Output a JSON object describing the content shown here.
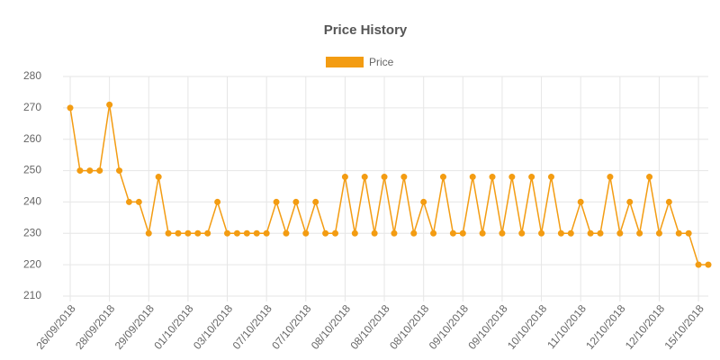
{
  "chart_data": {
    "type": "line",
    "title": "Price History",
    "categories": [
      "26/09/2018",
      null,
      null,
      null,
      "28/09/2018",
      null,
      null,
      null,
      "29/09/2018",
      null,
      null,
      null,
      "01/10/2018",
      null,
      null,
      null,
      "03/10/2018",
      null,
      null,
      null,
      "07/10/2018",
      null,
      null,
      null,
      "07/10/2018",
      null,
      null,
      null,
      "08/10/2018",
      null,
      null,
      null,
      "08/10/2018",
      null,
      null,
      null,
      "08/10/2018",
      null,
      null,
      null,
      "09/10/2018",
      null,
      null,
      null,
      "09/10/2018",
      null,
      null,
      null,
      "10/10/2018",
      null,
      null,
      null,
      "11/10/2018",
      null,
      null,
      null,
      "12/10/2018",
      null,
      null,
      null,
      "12/10/2018",
      null,
      null,
      null,
      "15/10/2018",
      null
    ],
    "series": [
      {
        "name": "Price",
        "color": "#f39c12",
        "values": [
          270,
          250,
          250,
          250,
          271,
          250,
          240,
          240,
          230,
          248,
          230,
          230,
          230,
          230,
          230,
          240,
          230,
          230,
          230,
          230,
          230,
          240,
          230,
          240,
          230,
          240,
          230,
          230,
          248,
          230,
          248,
          230,
          248,
          230,
          248,
          230,
          240,
          230,
          248,
          230,
          230,
          248,
          230,
          248,
          230,
          248,
          230,
          248,
          230,
          248,
          230,
          230,
          240,
          230,
          230,
          248,
          230,
          240,
          230,
          248,
          230,
          240,
          230,
          230,
          220,
          220
        ]
      }
    ],
    "ylim": [
      210,
      280
    ],
    "yticks": [
      210,
      220,
      230,
      240,
      250,
      260,
      270,
      280
    ],
    "grid": true
  }
}
